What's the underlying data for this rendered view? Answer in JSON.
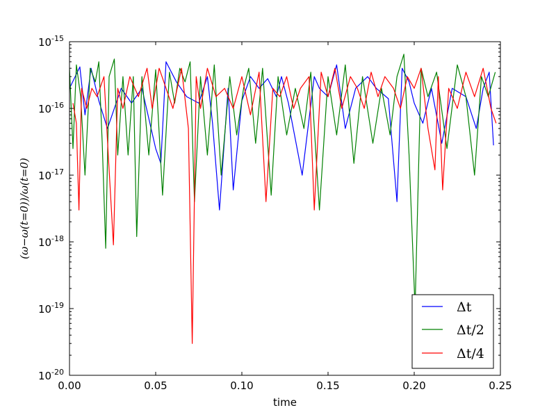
{
  "chart_data": {
    "type": "line",
    "xlabel": "time",
    "ylabel": "(ω−ω(t=0))/ω(t=0)",
    "xlim": [
      0.0,
      0.25
    ],
    "ylim": [
      1e-20,
      1e-15
    ],
    "yscale": "log",
    "grid": false,
    "legend_position": "lower-right",
    "x_ticks": [
      "0.00",
      "0.05",
      "0.10",
      "0.15",
      "0.20",
      "0.25"
    ],
    "y_ticks": [
      {
        "base": "10",
        "exp": "-20"
      },
      {
        "base": "10",
        "exp": "-19"
      },
      {
        "base": "10",
        "exp": "-18"
      },
      {
        "base": "10",
        "exp": "-17"
      },
      {
        "base": "10",
        "exp": "-16"
      },
      {
        "base": "10",
        "exp": "-15"
      }
    ],
    "series": [
      {
        "name": "Δt",
        "color": "#0000ff",
        "x": [
          0.0,
          0.006,
          0.009,
          0.0125,
          0.017,
          0.022,
          0.03,
          0.036,
          0.042,
          0.05,
          0.053,
          0.056,
          0.062,
          0.068,
          0.075,
          0.08,
          0.083,
          0.087,
          0.092,
          0.095,
          0.1,
          0.105,
          0.11,
          0.115,
          0.12,
          0.123,
          0.127,
          0.135,
          0.142,
          0.145,
          0.15,
          0.155,
          0.16,
          0.166,
          0.173,
          0.178,
          0.185,
          0.19,
          0.193,
          0.197,
          0.2,
          0.205,
          0.21,
          0.216,
          0.222,
          0.23,
          0.236,
          0.24,
          0.2435,
          0.246
        ],
        "y": [
          2e-16,
          4.2e-16,
          8e-17,
          4e-16,
          1.3e-16,
          5e-17,
          2e-16,
          1.2e-16,
          2e-16,
          2.5e-17,
          1.5e-17,
          5e-16,
          2.5e-16,
          1.5e-16,
          1.2e-16,
          3e-16,
          6e-17,
          3e-18,
          2e-16,
          6e-18,
          1.3e-16,
          3e-16,
          2e-16,
          2.8e-16,
          1.5e-16,
          3e-16,
          1.2e-16,
          1e-17,
          3e-16,
          2e-16,
          1.5e-16,
          4.5e-16,
          5e-17,
          2e-16,
          3e-16,
          2e-16,
          1.4e-16,
          4e-18,
          4e-16,
          2.5e-16,
          1.2e-16,
          6e-17,
          2e-16,
          3e-17,
          2e-16,
          1.5e-16,
          5e-17,
          2e-16,
          3.5e-16,
          2.8e-17
        ]
      },
      {
        "name": "Δt/2",
        "color": "#008000",
        "x": [
          0.0,
          0.002,
          0.004,
          0.0065,
          0.009,
          0.012,
          0.015,
          0.017,
          0.019,
          0.021,
          0.023,
          0.026,
          0.028,
          0.031,
          0.034,
          0.037,
          0.039,
          0.042,
          0.046,
          0.05,
          0.054,
          0.058,
          0.061,
          0.064,
          0.067,
          0.07,
          0.0725,
          0.076,
          0.08,
          0.084,
          0.088,
          0.093,
          0.097,
          0.101,
          0.104,
          0.108,
          0.112,
          0.117,
          0.121,
          0.126,
          0.131,
          0.136,
          0.14,
          0.145,
          0.15,
          0.155,
          0.16,
          0.165,
          0.17,
          0.176,
          0.181,
          0.186,
          0.19,
          0.194,
          0.197,
          0.2005,
          0.204,
          0.208,
          0.213,
          0.219,
          0.225,
          0.23,
          0.235,
          0.239,
          0.243,
          0.247
        ],
        "y": [
          4e-16,
          2.5e-17,
          4.5e-16,
          1.5e-16,
          1e-17,
          4e-16,
          2.5e-16,
          5e-16,
          3e-17,
          8e-19,
          3e-16,
          5.5e-16,
          2e-17,
          3e-16,
          2e-17,
          3e-16,
          1.2e-18,
          3e-16,
          2e-17,
          3.8e-16,
          5e-18,
          3.5e-16,
          1.2e-16,
          4e-16,
          2.5e-16,
          5e-16,
          4e-18,
          3e-16,
          2e-17,
          4.5e-16,
          1e-17,
          3e-16,
          4e-17,
          2e-16,
          4e-16,
          3e-17,
          4e-16,
          5e-18,
          3e-16,
          4e-17,
          2e-16,
          5e-17,
          3.5e-16,
          3e-18,
          3e-16,
          4e-17,
          4.5e-16,
          1.5e-17,
          3e-16,
          3e-17,
          2e-16,
          4e-17,
          3e-16,
          6.5e-16,
          2e-17,
          1e-19,
          4e-16,
          1.5e-16,
          3.5e-16,
          2.5e-17,
          4.5e-16,
          1.5e-16,
          1e-17,
          3e-16,
          1.5e-16,
          3.5e-16
        ]
      },
      {
        "name": "Δt/4",
        "color": "#ff0000",
        "x": [
          0.002,
          0.004,
          0.0055,
          0.007,
          0.01,
          0.013,
          0.016,
          0.02,
          0.0225,
          0.0255,
          0.028,
          0.031,
          0.035,
          0.04,
          0.045,
          0.048,
          0.052,
          0.056,
          0.06,
          0.065,
          0.069,
          0.0712,
          0.0735,
          0.076,
          0.08,
          0.085,
          0.09,
          0.095,
          0.1,
          0.105,
          0.11,
          0.114,
          0.118,
          0.122,
          0.126,
          0.13,
          0.134,
          0.139,
          0.142,
          0.146,
          0.15,
          0.154,
          0.158,
          0.163,
          0.167,
          0.171,
          0.175,
          0.179,
          0.183,
          0.188,
          0.192,
          0.196,
          0.2,
          0.204,
          0.208,
          0.212,
          0.214,
          0.2165,
          0.22,
          0.225,
          0.23,
          0.235,
          0.24,
          0.2445,
          0.2475
        ],
        "y": [
          1.2e-16,
          6e-17,
          3e-18,
          2e-16,
          1e-16,
          2e-16,
          1.5e-16,
          3e-16,
          2e-17,
          9e-19,
          2e-16,
          1e-16,
          3e-16,
          1.5e-16,
          4e-16,
          1e-16,
          4e-16,
          2e-16,
          1e-16,
          4e-16,
          5e-17,
          3e-20,
          3e-16,
          1e-16,
          4e-16,
          1.5e-16,
          2e-16,
          1e-16,
          3e-16,
          8e-17,
          3.5e-16,
          4e-18,
          2e-16,
          1.5e-16,
          3e-16,
          1e-16,
          2e-16,
          3e-16,
          3e-18,
          3.5e-16,
          1.5e-16,
          4e-16,
          1e-16,
          3e-16,
          2e-16,
          1e-16,
          3.5e-16,
          1.5e-16,
          3e-16,
          2e-16,
          1e-16,
          3e-16,
          2e-16,
          4e-16,
          5e-17,
          1.2e-17,
          3e-16,
          6e-18,
          2e-16,
          1e-16,
          3.5e-16,
          1.5e-16,
          4e-16,
          1e-16,
          6e-17
        ]
      }
    ]
  }
}
